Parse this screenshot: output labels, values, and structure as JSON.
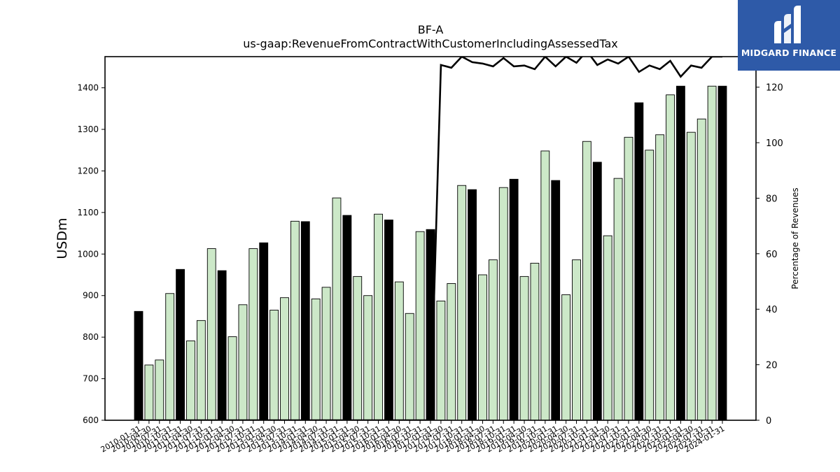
{
  "chart_data": {
    "type": "bar",
    "title": "BF-A",
    "subtitle": "us-gaap:RevenueFromContractWithCustomerIncludingAssessedTax",
    "ylabel": "USDm",
    "y2label": "Percentage of Revenues",
    "ylim": [
      600,
      1475
    ],
    "y2lim": [
      0,
      131
    ],
    "yticks": [
      600,
      700,
      800,
      900,
      1000,
      1100,
      1200,
      1300,
      1400
    ],
    "y2ticks": [
      0,
      20,
      40,
      60,
      80,
      100,
      120
    ],
    "grid": false,
    "colors": {
      "quarter_bar": "#cce8c8",
      "annual_bar": "#000000",
      "line": "#000000"
    },
    "categories": [
      "2010-01-31",
      "2010-04-30",
      "2010-07-31",
      "2010-10-31",
      "2011-01-31",
      "2011-04-30",
      "2011-07-31",
      "2011-10-31",
      "2012-01-31",
      "2012-04-30",
      "2012-07-31",
      "2012-10-31",
      "2013-01-31",
      "2013-04-30",
      "2013-07-31",
      "2013-10-31",
      "2014-01-31",
      "2014-04-30",
      "2014-07-31",
      "2014-10-31",
      "2015-01-31",
      "2015-04-30",
      "2015-07-31",
      "2015-10-31",
      "2016-01-31",
      "2016-04-30",
      "2016-07-31",
      "2016-10-31",
      "2017-01-31",
      "2017-04-30",
      "2017-07-31",
      "2017-10-31",
      "2018-01-31",
      "2018-04-30",
      "2018-07-31",
      "2018-10-31",
      "2019-01-31",
      "2019-04-30",
      "2019-07-31",
      "2019-10-31",
      "2020-01-31",
      "2020-04-30",
      "2020-07-31",
      "2020-10-31",
      "2021-01-31",
      "2021-04-30",
      "2021-07-31",
      "2021-10-31",
      "2022-01-31",
      "2022-04-30",
      "2022-07-31",
      "2022-10-31",
      "2023-01-31",
      "2023-04-30",
      "2023-07-31",
      "2023-10-31",
      "2024-01-31"
    ],
    "visible_tick_labels": [
      "2010-01-31",
      "2010-04-30",
      "2010-07-31",
      "2010-10-31",
      "2011-01-31",
      "2011-04-30",
      "2011-07-31",
      "2011-10-31",
      "2012-01-31",
      "2012-04-30",
      "2012-07-31",
      "2012-10-31",
      "2013-01-31",
      "2013-04-30",
      "2013-07-31",
      "2013-10-31",
      "2014-01-31",
      "2014-04-30",
      "2014-07-31",
      "2014-10-31",
      "2015-01-31",
      "2015-04-30",
      "2015-07-31",
      "2015-10-31",
      "2016-01-31",
      "2016-04-30",
      "2016-07-31",
      "2016-10-31",
      "2017-01-31",
      "2017-04-30",
      "2017-07-31",
      "2017-10-31",
      "2018-01-31",
      "2018-04-30",
      "2018-07-31",
      "2018-10-31",
      "2019-01-31",
      "2019-04-30",
      "2019-07-31",
      "2019-10-31",
      "2020-01-31",
      "2020-04-30",
      "2020-07-31",
      "2020-10-31",
      "2021-01-31",
      "2021-04-30",
      "2021-07-31",
      "2021-10-31",
      "2022-01-31",
      "2022-04-30",
      "2022-07-31",
      "2022-10-31",
      "2023-01-31",
      "2023-04-30",
      "2023-07-31",
      "2023-10-31",
      "2024-01-31"
    ],
    "series": [
      {
        "kind": "bar",
        "values": [
          862,
          733,
          745,
          905,
          963,
          791,
          840,
          1013,
          960,
          801,
          878,
          1013,
          1027,
          865,
          895,
          1079,
          1078,
          892,
          920,
          1135,
          1093,
          946,
          900,
          1096,
          1082,
          933,
          857,
          1054,
          1059,
          887,
          929,
          1165,
          1155,
          950,
          986,
          1160,
          1180,
          946,
          978,
          1248,
          1177,
          902,
          986,
          1271,
          1221,
          1044,
          1182,
          1281,
          1364,
          1250,
          1287,
          1383,
          1404,
          1293,
          1325,
          1404,
          1404
        ],
        "annual": [
          true,
          false,
          false,
          false,
          true,
          false,
          false,
          false,
          true,
          false,
          false,
          false,
          true,
          false,
          false,
          false,
          true,
          false,
          false,
          false,
          true,
          false,
          false,
          false,
          true,
          false,
          false,
          false,
          true,
          false,
          false,
          false,
          true,
          false,
          false,
          false,
          true,
          false,
          false,
          false,
          true,
          false,
          false,
          false,
          true,
          false,
          false,
          false,
          true,
          false,
          false,
          false,
          true,
          false,
          false,
          false,
          true
        ]
      },
      {
        "kind": "line",
        "axis": "right",
        "values": [
          0,
          0,
          0,
          0,
          0,
          0,
          0,
          0,
          0,
          0,
          0,
          0,
          0,
          0,
          0,
          0,
          0,
          0,
          0,
          0,
          0,
          0,
          0,
          0,
          0,
          0,
          0,
          0,
          0,
          128,
          127,
          131,
          129,
          128.5,
          127.5,
          130.5,
          127.5,
          127.8,
          126.5,
          131,
          127.5,
          131,
          128.8,
          133,
          128,
          130,
          128.5,
          131,
          125.5,
          127.8,
          126.5,
          129.5,
          123.8,
          127.8,
          127,
          131,
          131
        ]
      }
    ]
  },
  "logo": {
    "text": "MIDGARD FINANCE"
  }
}
